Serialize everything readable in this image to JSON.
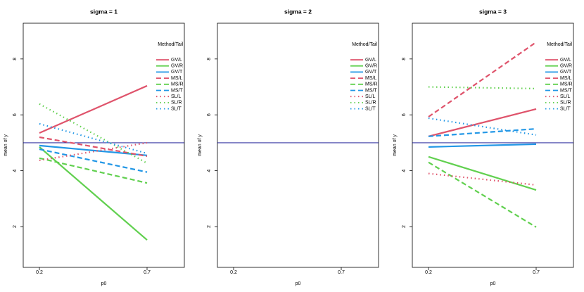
{
  "chart_data": [
    {
      "type": "line",
      "title": "sigma = 1",
      "x_label": "p0",
      "y_label": "mean of y",
      "categories": [
        "0.2",
        "0.7"
      ],
      "ylim": [
        0.54,
        9.28
      ],
      "yticks": [
        2,
        4,
        6,
        8
      ],
      "hline": 5,
      "hline_color": "#00008b",
      "legend": "topright",
      "legend_title": "Method/Tail",
      "series": [
        {
          "name": "GV/L",
          "color": "#DF536B",
          "linetype": "solid",
          "values": [
            5.35,
            7.04
          ]
        },
        {
          "name": "GV/R",
          "color": "#61D04F",
          "linetype": "solid",
          "values": [
            4.85,
            1.52
          ]
        },
        {
          "name": "GV/T",
          "color": "#2297E6",
          "linetype": "solid",
          "values": [
            4.9,
            4.55
          ]
        },
        {
          "name": "MS/L",
          "color": "#DF536B",
          "linetype": "dashed",
          "values": [
            5.2,
            4.52
          ]
        },
        {
          "name": "MS/R",
          "color": "#61D04F",
          "linetype": "dashed",
          "values": [
            4.45,
            3.56
          ]
        },
        {
          "name": "MS/T",
          "color": "#2297E6",
          "linetype": "dashed",
          "values": [
            4.77,
            3.95
          ]
        },
        {
          "name": "SL/L",
          "color": "#DF536B",
          "linetype": "dotted",
          "values": [
            4.37,
            5.0
          ]
        },
        {
          "name": "SL/R",
          "color": "#61D04F",
          "linetype": "dotted",
          "values": [
            6.39,
            4.27
          ]
        },
        {
          "name": "SL/T",
          "color": "#2297E6",
          "linetype": "dotted",
          "values": [
            5.68,
            4.62
          ]
        }
      ]
    },
    {
      "type": "line",
      "title": "sigma = 2",
      "x_label": "p0",
      "y_label": "mean of y",
      "categories": [
        "0.2",
        "0.7"
      ],
      "ylim": [
        0.54,
        9.28
      ],
      "yticks": [
        2,
        4,
        6,
        8
      ],
      "hline": 5,
      "hline_color": "#00008b",
      "legend": "topright",
      "legend_title": "Method/Tail",
      "series": [
        {
          "name": "GV/L",
          "color": "#DF536B",
          "linetype": "solid",
          "values": [
            null,
            null
          ]
        },
        {
          "name": "GV/R",
          "color": "#61D04F",
          "linetype": "solid",
          "values": [
            null,
            null
          ]
        },
        {
          "name": "GV/T",
          "color": "#2297E6",
          "linetype": "solid",
          "values": [
            null,
            null
          ]
        },
        {
          "name": "MS/L",
          "color": "#DF536B",
          "linetype": "dashed",
          "values": [
            null,
            null
          ]
        },
        {
          "name": "MS/R",
          "color": "#61D04F",
          "linetype": "dashed",
          "values": [
            null,
            null
          ]
        },
        {
          "name": "MS/T",
          "color": "#2297E6",
          "linetype": "dashed",
          "values": [
            null,
            null
          ]
        },
        {
          "name": "SL/L",
          "color": "#DF536B",
          "linetype": "dotted",
          "values": [
            null,
            null
          ]
        },
        {
          "name": "SL/R",
          "color": "#61D04F",
          "linetype": "dotted",
          "values": [
            null,
            null
          ]
        },
        {
          "name": "SL/T",
          "color": "#2297E6",
          "linetype": "dotted",
          "values": [
            null,
            null
          ]
        }
      ]
    },
    {
      "type": "line",
      "title": "sigma = 3",
      "x_label": "p0",
      "y_label": "mean of y",
      "categories": [
        "0.2",
        "0.7"
      ],
      "ylim": [
        0.54,
        9.28
      ],
      "yticks": [
        2,
        4,
        6,
        8
      ],
      "hline": 5,
      "hline_color": "#00008b",
      "legend": "topright",
      "legend_title": "Method/Tail",
      "series": [
        {
          "name": "GV/L",
          "color": "#DF536B",
          "linetype": "solid",
          "values": [
            5.23,
            6.21
          ]
        },
        {
          "name": "GV/R",
          "color": "#61D04F",
          "linetype": "solid",
          "values": [
            4.5,
            3.31
          ]
        },
        {
          "name": "GV/T",
          "color": "#2297E6",
          "linetype": "solid",
          "values": [
            4.85,
            4.95
          ]
        },
        {
          "name": "MS/L",
          "color": "#DF536B",
          "linetype": "dashed",
          "values": [
            5.93,
            8.6
          ]
        },
        {
          "name": "MS/R",
          "color": "#61D04F",
          "linetype": "dashed",
          "values": [
            4.3,
            1.98
          ]
        },
        {
          "name": "MS/T",
          "color": "#2297E6",
          "linetype": "dashed",
          "values": [
            5.23,
            5.5
          ]
        },
        {
          "name": "SL/L",
          "color": "#DF536B",
          "linetype": "dotted",
          "values": [
            3.9,
            3.49
          ]
        },
        {
          "name": "SL/R",
          "color": "#61D04F",
          "linetype": "dotted",
          "values": [
            7.0,
            6.94
          ]
        },
        {
          "name": "SL/T",
          "color": "#2297E6",
          "linetype": "dotted",
          "values": [
            5.88,
            5.28
          ]
        }
      ]
    }
  ]
}
